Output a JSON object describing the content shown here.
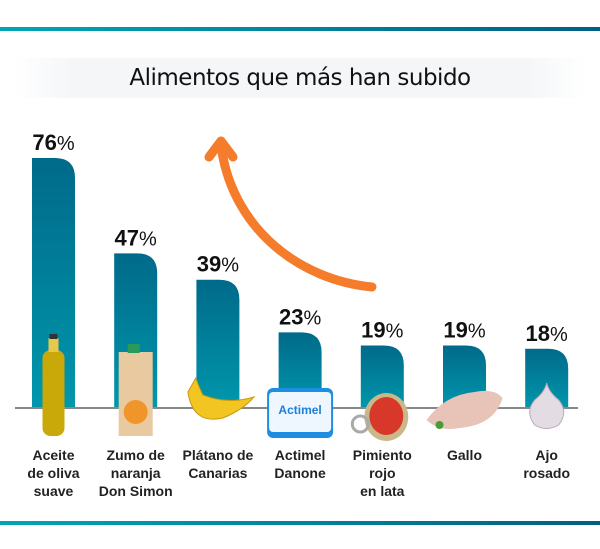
{
  "colors": {
    "bar_top": "#006a8a",
    "bar_bottom": "#0097ac",
    "arrow": "#f47c2a",
    "rule_left": "#00a6b6",
    "rule_right": "#006083"
  },
  "chart_data": {
    "type": "bar",
    "title": "Alimentos que más han subido",
    "categories": [
      "Aceite\nde oliva\nsuave",
      "Zumo de\nnaranja\nDon Simon",
      "Plátano de\nCanarias",
      "Actimel\nDanone",
      "Pimiento\nrojo\nen lata",
      "Gallo",
      "Ajo\nrosado"
    ],
    "values": [
      76,
      47,
      39,
      23,
      19,
      19,
      18
    ],
    "unit": "%",
    "icons": [
      "olive-oil-bottle-icon",
      "orange-juice-carton-icon",
      "banana-icon",
      "actimel-pack-icon",
      "red-pepper-can-icon",
      "fish-fillet-icon",
      "garlic-icon"
    ],
    "ylim": [
      0,
      80
    ],
    "grid": false,
    "legend": "none"
  }
}
